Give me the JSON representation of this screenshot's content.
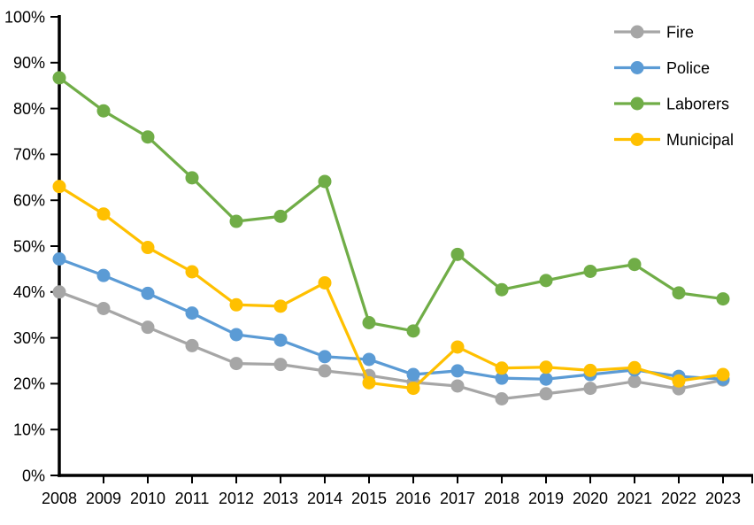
{
  "chart_data": {
    "type": "line",
    "title": "",
    "xlabel": "",
    "ylabel": "",
    "categories": [
      "2008",
      "2009",
      "2010",
      "2011",
      "2012",
      "2013",
      "2014",
      "2015",
      "2016",
      "2017",
      "2018",
      "2019",
      "2020",
      "2021",
      "2022",
      "2023"
    ],
    "series": [
      {
        "name": "Fire",
        "color": "#A6A6A6",
        "values": [
          40.0,
          36.4,
          32.3,
          28.3,
          24.4,
          24.2,
          22.8,
          21.8,
          20.3,
          19.5,
          16.7,
          17.8,
          19.0,
          20.5,
          18.9,
          20.8
        ]
      },
      {
        "name": "Police",
        "color": "#5B9BD5",
        "values": [
          47.2,
          43.6,
          39.7,
          35.4,
          30.7,
          29.5,
          25.9,
          25.3,
          22.0,
          22.8,
          21.2,
          21.0,
          22.0,
          23.0,
          21.6,
          21.0
        ]
      },
      {
        "name": "Laborers",
        "color": "#70AD47",
        "values": [
          86.7,
          79.5,
          73.8,
          64.9,
          55.4,
          56.5,
          64.1,
          33.3,
          31.5,
          48.2,
          40.5,
          42.5,
          44.5,
          46.0,
          39.8,
          38.5
        ]
      },
      {
        "name": "Municipal",
        "color": "#FFC000",
        "values": [
          63.0,
          57.0,
          49.7,
          44.4,
          37.2,
          36.9,
          42.0,
          20.2,
          19.0,
          28.0,
          23.4,
          23.6,
          22.9,
          23.5,
          20.6,
          22.0
        ]
      }
    ],
    "ylim": [
      0,
      100
    ],
    "ytick_step": 10,
    "ytick_labels": [
      "0%",
      "10%",
      "20%",
      "30%",
      "40%",
      "50%",
      "60%",
      "70%",
      "80%",
      "90%",
      "100%"
    ],
    "grid": false,
    "legend_position": "top-right",
    "marker_style": "circle",
    "axis_color": "#000000",
    "text_color": "#000000",
    "background_color": "#FFFFFF"
  }
}
